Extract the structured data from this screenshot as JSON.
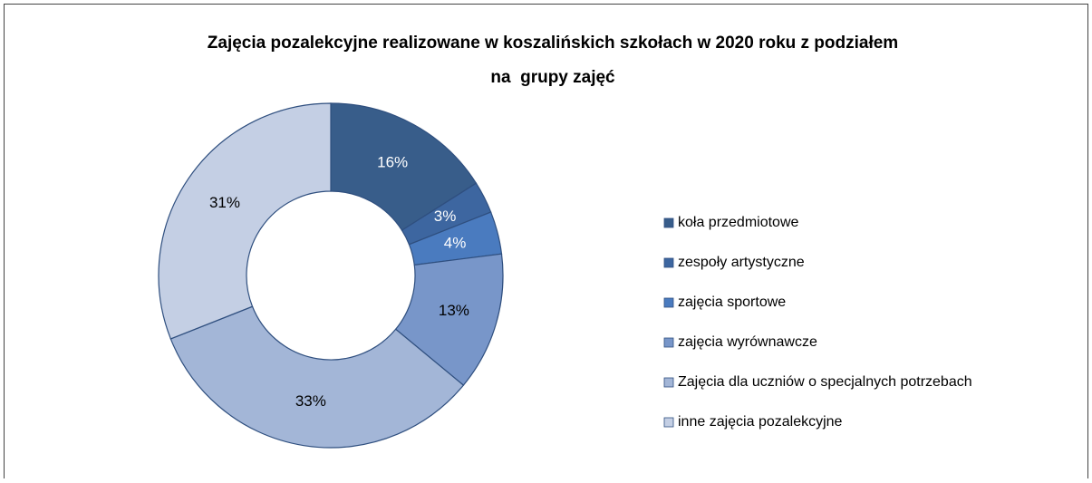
{
  "chart_data": {
    "type": "donut",
    "title": [
      "Zajęcia pozalekcyjne realizowane w koszalińskich szkołach w 2020 roku z podziałem",
      "na  grupy zajęć"
    ],
    "categories": [
      "koła przedmiotowe",
      "zespoły artystyczne",
      "zajęcia sportowe",
      "zajęcia wyrównawcze",
      "Zajęcia dla uczniów o specjalnych potrzebach",
      "inne zajęcia pozalekcyjne"
    ],
    "values": [
      16,
      3,
      4,
      13,
      33,
      31
    ],
    "value_labels": [
      "16%",
      "3%",
      "4%",
      "13%",
      "33%",
      "31%"
    ],
    "colors": [
      "#385d8a",
      "#3d66a0",
      "#4a7bbf",
      "#7896c9",
      "#a3b6d7",
      "#c4cfe4"
    ],
    "legend": "right"
  }
}
